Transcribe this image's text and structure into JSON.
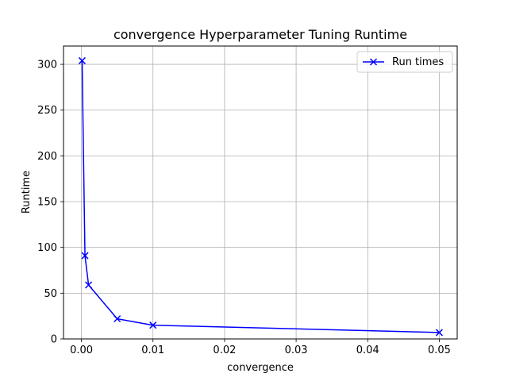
{
  "chart_data": {
    "type": "line",
    "title": "convergence Hyperparameter Tuning Runtime",
    "xlabel": "convergence",
    "ylabel": "Runtime",
    "xlim": [
      -0.0025,
      0.0525
    ],
    "ylim": [
      0,
      320
    ],
    "xticks": [
      0.0,
      0.01,
      0.02,
      0.03,
      0.04,
      0.05
    ],
    "xtick_labels": [
      "0.00",
      "0.01",
      "0.02",
      "0.03",
      "0.04",
      "0.05"
    ],
    "yticks": [
      0,
      50,
      100,
      150,
      200,
      250,
      300
    ],
    "ytick_labels": [
      "0",
      "50",
      "100",
      "150",
      "200",
      "250",
      "300"
    ],
    "grid": true,
    "legend_position": "top-right",
    "series": [
      {
        "name": "Run times",
        "color": "#0000ff",
        "marker": "x",
        "x": [
          0.0001,
          0.0005,
          0.001,
          0.005,
          0.01,
          0.05
        ],
        "y": [
          304,
          91,
          59,
          22,
          15,
          7
        ]
      }
    ]
  }
}
